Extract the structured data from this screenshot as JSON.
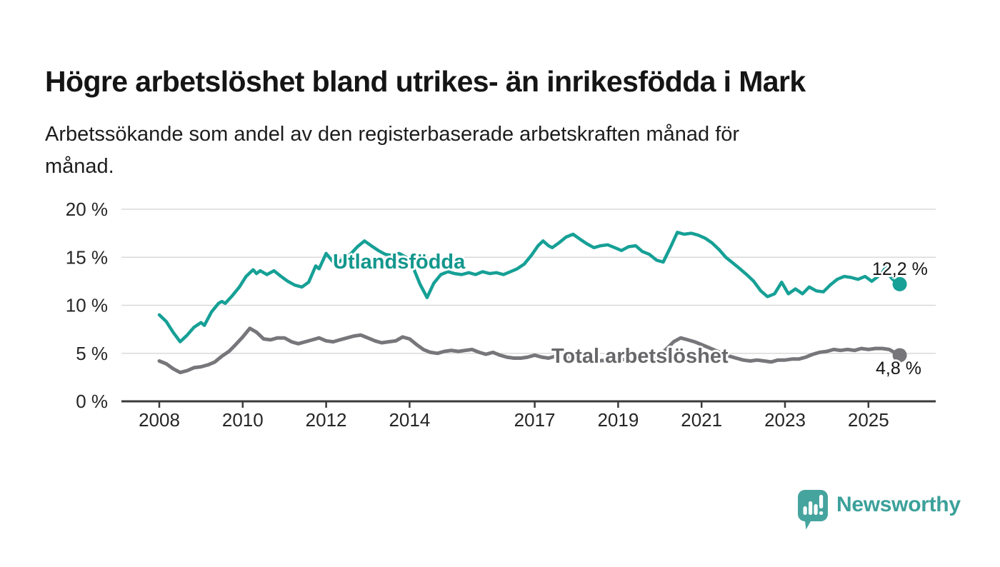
{
  "chart_data": {
    "type": "line",
    "title": "Högre arbetslöshet bland utrikes- än inrikesfödda i Mark",
    "subtitle": "Arbetssökande som andel av den registerbaserade arbetskraften månad för månad.",
    "subtitle_lines": [
      "Arbetssökande som andel av den registerbaserade arbetskraften månad för",
      "månad."
    ],
    "unit": "%",
    "grid": "horizontal",
    "legend_position": "inline-on-lines",
    "x_axis": {
      "tick_years": [
        2008,
        2010,
        2012,
        2014,
        2017,
        2019,
        2021,
        2023,
        2025
      ],
      "tick_labels": [
        "2008",
        "2010",
        "2012",
        "2014",
        "2017",
        "2019",
        "2021",
        "2023",
        "2025"
      ],
      "range_years": [
        2007.1,
        2026.6
      ]
    },
    "y_axis": {
      "tick_values": [
        0,
        5,
        10,
        15,
        20
      ],
      "tick_labels": [
        "0 %",
        "5 %",
        "10 %",
        "15 %",
        "20 %"
      ],
      "range": [
        0,
        20
      ]
    },
    "series": [
      {
        "name": "Utlandsfödda",
        "color": "#16A096",
        "label_color": "#12978D",
        "end_label": "12,2 %",
        "end_value": 12.2,
        "points": [
          [
            2008.0,
            9.0
          ],
          [
            2008.17,
            8.3
          ],
          [
            2008.33,
            7.2
          ],
          [
            2008.5,
            6.2
          ],
          [
            2008.67,
            6.9
          ],
          [
            2008.83,
            7.7
          ],
          [
            2009.0,
            8.2
          ],
          [
            2009.08,
            7.9
          ],
          [
            2009.25,
            9.3
          ],
          [
            2009.42,
            10.2
          ],
          [
            2009.5,
            10.4
          ],
          [
            2009.58,
            10.2
          ],
          [
            2009.75,
            11.0
          ],
          [
            2009.92,
            11.9
          ],
          [
            2010.08,
            13.0
          ],
          [
            2010.25,
            13.7
          ],
          [
            2010.33,
            13.3
          ],
          [
            2010.42,
            13.6
          ],
          [
            2010.58,
            13.2
          ],
          [
            2010.75,
            13.6
          ],
          [
            2010.92,
            13.0
          ],
          [
            2011.08,
            12.5
          ],
          [
            2011.25,
            12.1
          ],
          [
            2011.42,
            11.9
          ],
          [
            2011.58,
            12.4
          ],
          [
            2011.75,
            14.1
          ],
          [
            2011.83,
            13.8
          ],
          [
            2012.0,
            15.4
          ],
          [
            2012.17,
            14.5
          ],
          [
            2012.25,
            14.3
          ],
          [
            2012.42,
            14.9
          ],
          [
            2012.58,
            15.3
          ],
          [
            2012.75,
            16.1
          ],
          [
            2012.92,
            16.7
          ],
          [
            2013.08,
            16.2
          ],
          [
            2013.25,
            15.7
          ],
          [
            2013.42,
            15.3
          ],
          [
            2013.58,
            15.2
          ],
          [
            2013.75,
            15.4
          ],
          [
            2013.92,
            15.0
          ],
          [
            2014.08,
            14.0
          ],
          [
            2014.25,
            12.2
          ],
          [
            2014.42,
            10.8
          ],
          [
            2014.58,
            12.3
          ],
          [
            2014.75,
            13.2
          ],
          [
            2014.92,
            13.5
          ],
          [
            2015.08,
            13.3
          ],
          [
            2015.25,
            13.2
          ],
          [
            2015.42,
            13.4
          ],
          [
            2015.58,
            13.2
          ],
          [
            2015.75,
            13.5
          ],
          [
            2015.92,
            13.3
          ],
          [
            2016.08,
            13.4
          ],
          [
            2016.25,
            13.2
          ],
          [
            2016.42,
            13.5
          ],
          [
            2016.58,
            13.8
          ],
          [
            2016.75,
            14.3
          ],
          [
            2016.92,
            15.2
          ],
          [
            2017.08,
            16.2
          ],
          [
            2017.2,
            16.7
          ],
          [
            2017.33,
            16.2
          ],
          [
            2017.42,
            16.0
          ],
          [
            2017.58,
            16.5
          ],
          [
            2017.75,
            17.1
          ],
          [
            2017.92,
            17.4
          ],
          [
            2018.08,
            16.9
          ],
          [
            2018.25,
            16.4
          ],
          [
            2018.42,
            16.0
          ],
          [
            2018.58,
            16.2
          ],
          [
            2018.75,
            16.3
          ],
          [
            2018.92,
            16.0
          ],
          [
            2019.08,
            15.7
          ],
          [
            2019.25,
            16.1
          ],
          [
            2019.42,
            16.2
          ],
          [
            2019.58,
            15.6
          ],
          [
            2019.75,
            15.3
          ],
          [
            2019.92,
            14.7
          ],
          [
            2020.08,
            14.5
          ],
          [
            2020.25,
            16.0
          ],
          [
            2020.42,
            17.6
          ],
          [
            2020.58,
            17.4
          ],
          [
            2020.75,
            17.5
          ],
          [
            2020.92,
            17.3
          ],
          [
            2021.08,
            17.0
          ],
          [
            2021.25,
            16.5
          ],
          [
            2021.42,
            15.8
          ],
          [
            2021.58,
            15.0
          ],
          [
            2021.75,
            14.4
          ],
          [
            2021.92,
            13.8
          ],
          [
            2022.08,
            13.2
          ],
          [
            2022.25,
            12.5
          ],
          [
            2022.42,
            11.5
          ],
          [
            2022.58,
            10.9
          ],
          [
            2022.75,
            11.2
          ],
          [
            2022.92,
            12.4
          ],
          [
            2023.08,
            11.2
          ],
          [
            2023.25,
            11.7
          ],
          [
            2023.42,
            11.2
          ],
          [
            2023.58,
            11.9
          ],
          [
            2023.75,
            11.5
          ],
          [
            2023.92,
            11.4
          ],
          [
            2024.08,
            12.1
          ],
          [
            2024.25,
            12.7
          ],
          [
            2024.42,
            13.0
          ],
          [
            2024.58,
            12.9
          ],
          [
            2024.75,
            12.7
          ],
          [
            2024.92,
            13.0
          ],
          [
            2025.08,
            12.5
          ],
          [
            2025.2,
            12.9
          ],
          [
            2025.33,
            13.4
          ],
          [
            2025.42,
            14.0
          ],
          [
            2025.5,
            13.1
          ],
          [
            2025.58,
            12.7
          ],
          [
            2025.67,
            12.4
          ],
          [
            2025.75,
            12.2
          ]
        ]
      },
      {
        "name": "Total arbetslöshet",
        "color": "#77777B",
        "label_color": "#68686B",
        "end_label": "4,8 %",
        "end_value": 4.8,
        "points": [
          [
            2008.0,
            4.2
          ],
          [
            2008.17,
            3.9
          ],
          [
            2008.33,
            3.4
          ],
          [
            2008.5,
            3.0
          ],
          [
            2008.67,
            3.2
          ],
          [
            2008.83,
            3.5
          ],
          [
            2009.0,
            3.6
          ],
          [
            2009.17,
            3.8
          ],
          [
            2009.33,
            4.1
          ],
          [
            2009.5,
            4.7
          ],
          [
            2009.67,
            5.2
          ],
          [
            2009.83,
            5.9
          ],
          [
            2010.0,
            6.7
          ],
          [
            2010.17,
            7.6
          ],
          [
            2010.33,
            7.2
          ],
          [
            2010.5,
            6.5
          ],
          [
            2010.67,
            6.4
          ],
          [
            2010.83,
            6.6
          ],
          [
            2011.0,
            6.6
          ],
          [
            2011.17,
            6.2
          ],
          [
            2011.33,
            6.0
          ],
          [
            2011.5,
            6.2
          ],
          [
            2011.67,
            6.4
          ],
          [
            2011.83,
            6.6
          ],
          [
            2012.0,
            6.3
          ],
          [
            2012.17,
            6.2
          ],
          [
            2012.33,
            6.4
          ],
          [
            2012.5,
            6.6
          ],
          [
            2012.67,
            6.8
          ],
          [
            2012.83,
            6.9
          ],
          [
            2013.0,
            6.6
          ],
          [
            2013.17,
            6.3
          ],
          [
            2013.33,
            6.1
          ],
          [
            2013.5,
            6.2
          ],
          [
            2013.67,
            6.3
          ],
          [
            2013.83,
            6.7
          ],
          [
            2014.0,
            6.5
          ],
          [
            2014.17,
            5.9
          ],
          [
            2014.33,
            5.4
          ],
          [
            2014.5,
            5.1
          ],
          [
            2014.67,
            5.0
          ],
          [
            2014.83,
            5.2
          ],
          [
            2015.0,
            5.3
          ],
          [
            2015.17,
            5.2
          ],
          [
            2015.33,
            5.3
          ],
          [
            2015.5,
            5.4
          ],
          [
            2015.67,
            5.1
          ],
          [
            2015.83,
            4.9
          ],
          [
            2016.0,
            5.1
          ],
          [
            2016.17,
            4.8
          ],
          [
            2016.33,
            4.6
          ],
          [
            2016.5,
            4.5
          ],
          [
            2016.67,
            4.5
          ],
          [
            2016.83,
            4.6
          ],
          [
            2017.0,
            4.8
          ],
          [
            2017.17,
            4.6
          ],
          [
            2017.33,
            4.5
          ],
          [
            2017.5,
            4.7
          ],
          [
            2017.67,
            4.6
          ],
          [
            2017.83,
            4.5
          ],
          [
            2018.0,
            4.4
          ],
          [
            2018.25,
            4.3
          ],
          [
            2018.5,
            4.2
          ],
          [
            2018.75,
            4.3
          ],
          [
            2019.0,
            4.3
          ],
          [
            2019.25,
            4.4
          ],
          [
            2019.5,
            4.3
          ],
          [
            2019.75,
            4.4
          ],
          [
            2020.0,
            4.8
          ],
          [
            2020.17,
            5.5
          ],
          [
            2020.33,
            6.2
          ],
          [
            2020.5,
            6.6
          ],
          [
            2020.67,
            6.4
          ],
          [
            2020.83,
            6.2
          ],
          [
            2021.0,
            5.9
          ],
          [
            2021.17,
            5.6
          ],
          [
            2021.33,
            5.3
          ],
          [
            2021.5,
            5.0
          ],
          [
            2021.67,
            4.7
          ],
          [
            2021.83,
            4.5
          ],
          [
            2022.0,
            4.3
          ],
          [
            2022.17,
            4.2
          ],
          [
            2022.33,
            4.3
          ],
          [
            2022.5,
            4.2
          ],
          [
            2022.67,
            4.1
          ],
          [
            2022.83,
            4.3
          ],
          [
            2023.0,
            4.3
          ],
          [
            2023.17,
            4.4
          ],
          [
            2023.33,
            4.4
          ],
          [
            2023.5,
            4.6
          ],
          [
            2023.67,
            4.9
          ],
          [
            2023.83,
            5.1
          ],
          [
            2024.0,
            5.2
          ],
          [
            2024.17,
            5.4
          ],
          [
            2024.33,
            5.3
          ],
          [
            2024.5,
            5.4
          ],
          [
            2024.67,
            5.3
          ],
          [
            2024.83,
            5.5
          ],
          [
            2025.0,
            5.4
          ],
          [
            2025.17,
            5.5
          ],
          [
            2025.33,
            5.5
          ],
          [
            2025.5,
            5.4
          ],
          [
            2025.58,
            5.2
          ],
          [
            2025.67,
            5.0
          ],
          [
            2025.75,
            4.8
          ]
        ]
      }
    ]
  },
  "branding": {
    "logo_text": "Newsworthy",
    "brand_color": "#3CA19A",
    "icon": "newsworthy-speech-bubble-chart-icon"
  }
}
